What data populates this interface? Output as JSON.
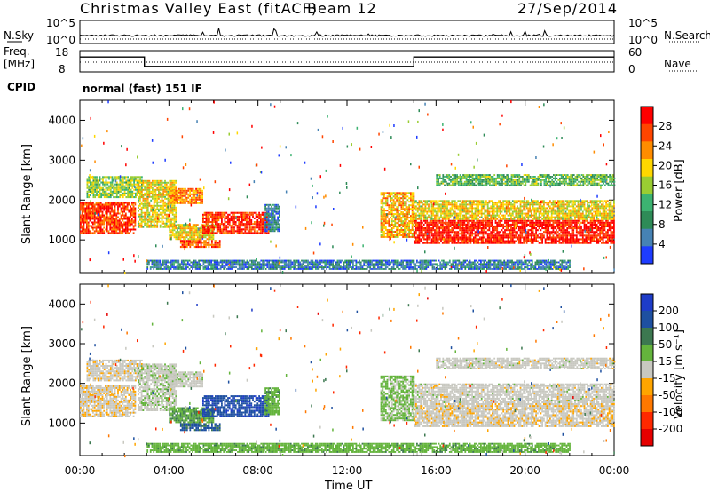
{
  "header": {
    "title": "Christmas Valley East (fitACF)",
    "beam": "Beam 12",
    "date": "27/Sep/2014"
  },
  "noise_panel": {
    "left_label": "N.Sky",
    "left_ticks": [
      "10^5",
      "10^0"
    ],
    "right_ticks": [
      "10^5",
      "10^0"
    ],
    "right_label": "N.Search"
  },
  "freq_panel": {
    "left_label_line1": "Freq.",
    "left_label_line2": "[MHz]",
    "left_ticks": [
      "18",
      "8"
    ],
    "right_ticks": [
      "60",
      "0"
    ],
    "right_label": "Nave"
  },
  "cpid": {
    "label": "CPID",
    "text": "normal (fast) 151 IF"
  },
  "power_panel": {
    "ylabel": "Slant Range [km]",
    "cbar_label": "Power [dB]",
    "cbar_ticks": [
      "28",
      "24",
      "20",
      "16",
      "12",
      "8",
      "4"
    ],
    "colors": [
      "#ff0000",
      "#ff4500",
      "#ff8c00",
      "#ffd700",
      "#9acd32",
      "#3cb371",
      "#2e8b57",
      "#4682b4",
      "#1e3cff"
    ]
  },
  "velocity_panel": {
    "ylabel": "Slant Range [km]",
    "cbar_label": "Velocity [m s⁻¹]",
    "cbar_ticks": [
      "200",
      "100",
      "50",
      "15",
      "-15",
      "-50",
      "-100",
      "-200"
    ],
    "colors": [
      "#1e3cc8",
      "#1e50a0",
      "#3c7850",
      "#64b43c",
      "#c8c8c0",
      "#ffa500",
      "#ff7800",
      "#ff2800",
      "#e60000"
    ]
  },
  "xaxis": {
    "label": "Time UT",
    "ticks": [
      "00:00",
      "04:00",
      "08:00",
      "12:00",
      "16:00",
      "20:00",
      "00:00"
    ]
  },
  "chart_data": {
    "type": "heatmap",
    "title": "Christmas Valley East (fitACF)",
    "xlabel": "Time UT",
    "ylabel": "Slant Range [km]",
    "xlim_hours": [
      0,
      24
    ],
    "ylim_km": [
      180,
      4500
    ],
    "y_ticks": [
      1000,
      2000,
      3000,
      4000
    ],
    "power_scale_db": [
      0,
      30
    ],
    "velocity_scale_ms": [
      -250,
      250
    ],
    "freq_steps": [
      {
        "start_h": 0.0,
        "end_h": 2.9,
        "freq_mhz": 15.0
      },
      {
        "start_h": 2.9,
        "end_h": 15.0,
        "freq_mhz": 10.6
      },
      {
        "start_h": 15.0,
        "end_h": 24.0,
        "freq_mhz": 15.0
      }
    ],
    "echo_bands": [
      {
        "start_h": 0.0,
        "end_h": 2.5,
        "range_start_km": 1150,
        "range_end_km": 1950,
        "power_db": 26,
        "velocity_ms": -15
      },
      {
        "start_h": 0.3,
        "end_h": 2.8,
        "range_start_km": 2050,
        "range_end_km": 2600,
        "power_db": 14,
        "velocity_ms": -5
      },
      {
        "start_h": 2.6,
        "end_h": 4.3,
        "range_start_km": 1300,
        "range_end_km": 2500,
        "power_db": 18,
        "velocity_ms": 10
      },
      {
        "start_h": 4.0,
        "end_h": 5.5,
        "range_start_km": 1900,
        "range_end_km": 2300,
        "power_db": 22,
        "velocity_ms": 5
      },
      {
        "start_h": 4.5,
        "end_h": 6.3,
        "range_start_km": 800,
        "range_end_km": 1000,
        "power_db": 25,
        "velocity_ms": 150
      },
      {
        "start_h": 4.0,
        "end_h": 6.0,
        "range_start_km": 1000,
        "range_end_km": 1400,
        "power_db": 18,
        "velocity_ms": 80
      },
      {
        "start_h": 5.5,
        "end_h": 8.5,
        "range_start_km": 1150,
        "range_end_km": 1700,
        "power_db": 27,
        "velocity_ms": 180
      },
      {
        "start_h": 8.3,
        "end_h": 9.0,
        "range_start_km": 1200,
        "range_end_km": 1900,
        "power_db": 6,
        "velocity_ms": 60
      },
      {
        "start_h": 13.5,
        "end_h": 15.0,
        "range_start_km": 1050,
        "range_end_km": 2200,
        "power_db": 20,
        "velocity_ms": 40
      },
      {
        "start_h": 15.0,
        "end_h": 24.0,
        "range_start_km": 900,
        "range_end_km": 1500,
        "power_db": 28,
        "velocity_ms": -10
      },
      {
        "start_h": 15.0,
        "end_h": 24.0,
        "range_start_km": 1500,
        "range_end_km": 2000,
        "power_db": 18,
        "velocity_ms": 0
      },
      {
        "start_h": 16.0,
        "end_h": 24.0,
        "range_start_km": 2350,
        "range_end_km": 2650,
        "power_db": 12,
        "velocity_ms": 0
      },
      {
        "start_h": 3.0,
        "end_h": 22.0,
        "range_start_km": 250,
        "range_end_km": 500,
        "power_db": 6,
        "velocity_ms": 60
      }
    ]
  }
}
